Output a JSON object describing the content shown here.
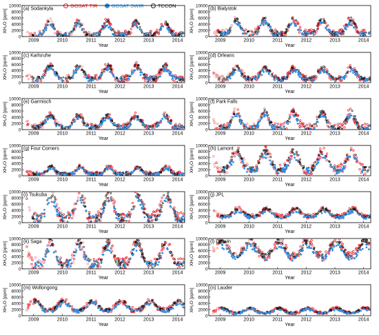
{
  "legend": [
    {
      "label": "GOSAT TIR",
      "color": "#e8202a",
      "style": "ring"
    },
    {
      "label": "GOSAT SWIR",
      "color": "#2f8fe5",
      "style": "dot"
    },
    {
      "label": "TCCON",
      "color": "#222222",
      "style": "ring"
    }
  ],
  "colors": {
    "tir": "#e8202a",
    "tir_faint": "#f28a8e",
    "swir": "#2f8fe5",
    "tccon": "#111111"
  },
  "chart_data": {
    "type": "scatter",
    "xlabel": "Year",
    "ylabel": "XH₂O [ppm]",
    "x_ticks": [
      "2009",
      "2010",
      "2011",
      "2012",
      "2013",
      "2014"
    ],
    "xlim": [
      2008.6,
      2014.25
    ],
    "y_ticks": [
      "0",
      "2000",
      "4000",
      "6000",
      "8000",
      "10000"
    ],
    "ylim": [
      0,
      10000
    ],
    "series_names": [
      "GOSAT TIR",
      "GOSAT SWIR",
      "TCCON"
    ],
    "panels": [
      {
        "label": "(a) Sodankyla",
        "base": 600,
        "amp": 4200,
        "phase": 0.55,
        "sharp": 3
      },
      {
        "label": "(b) Bialystok",
        "base": 1000,
        "amp": 4500,
        "phase": 0.55,
        "sharp": 2.5
      },
      {
        "label": "(c) Karlsruhe",
        "base": 1300,
        "amp": 4300,
        "phase": 0.58,
        "sharp": 2.2
      },
      {
        "label": "(d) Orleans",
        "base": 1300,
        "amp": 3600,
        "phase": 0.58,
        "sharp": 2
      },
      {
        "label": "(e) Garmisch",
        "base": 800,
        "amp": 3800,
        "phase": 0.56,
        "sharp": 2
      },
      {
        "label": "(f) Park Falls",
        "base": 500,
        "amp": 5200,
        "phase": 0.55,
        "sharp": 2.5
      },
      {
        "label": "(g) Four Corners",
        "base": 700,
        "amp": 2400,
        "phase": 0.62,
        "sharp": 4
      },
      {
        "label": "(h) Lamont",
        "base": 2000,
        "amp": 6000,
        "phase": 0.58,
        "sharp": 1.6
      },
      {
        "label": "(i) Tsukuba",
        "base": 1500,
        "amp": 7500,
        "phase": 0.62,
        "sharp": 2
      },
      {
        "label": "(j) JPL",
        "base": 2000,
        "amp": 2500,
        "phase": 0.63,
        "sharp": 1.6
      },
      {
        "label": "(k) Saga",
        "base": 1800,
        "amp": 7000,
        "phase": 0.6,
        "sharp": 2.2
      },
      {
        "label": "(l) Darwin",
        "base": 4200,
        "amp": 5000,
        "phase": 0.05,
        "sharp": 1.2
      },
      {
        "label": "(m) Wollongong",
        "base": 1800,
        "amp": 3000,
        "phase": 0.05,
        "sharp": 1.5
      },
      {
        "label": "(n) Lauder",
        "base": 900,
        "amp": 1600,
        "phase": 0.05,
        "sharp": 1.5
      }
    ]
  }
}
